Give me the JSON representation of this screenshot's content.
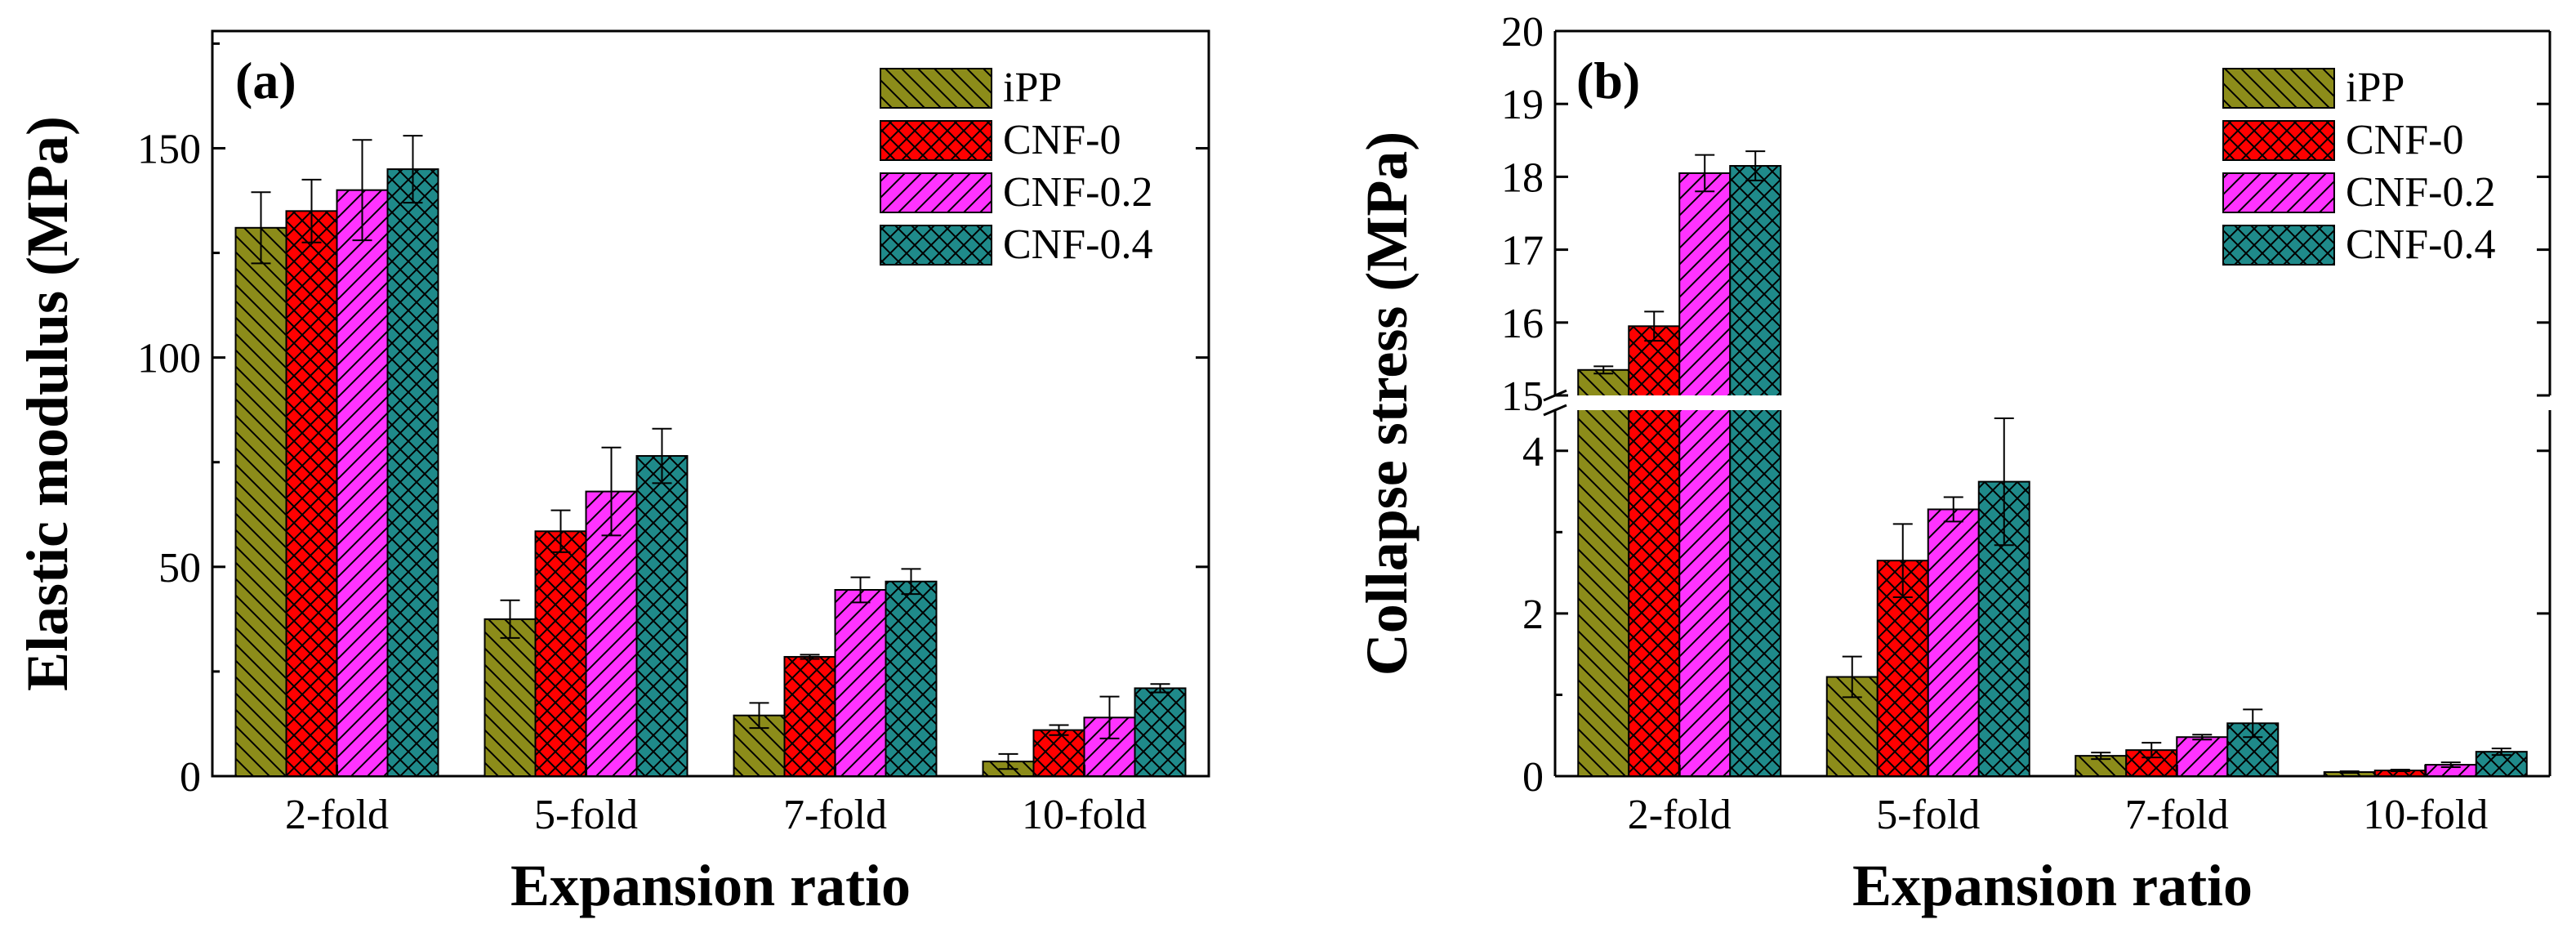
{
  "chart_data": [
    {
      "type": "bar",
      "panel_label": "(a)",
      "categories": [
        "2-fold",
        "5-fold",
        "7-fold",
        "10-fold"
      ],
      "series": [
        {
          "name": "iPP",
          "values": [
            131,
            37.5,
            14.5,
            3.5
          ],
          "errors": [
            8.5,
            4.5,
            3.0,
            1.8
          ]
        },
        {
          "name": "CNF-0",
          "values": [
            135,
            58.5,
            28.5,
            11.0
          ],
          "errors": [
            7.5,
            5.0,
            0.5,
            1.2
          ]
        },
        {
          "name": "CNF-0.2",
          "values": [
            140,
            68.0,
            44.5,
            14.0
          ],
          "errors": [
            12.0,
            10.5,
            3.0,
            5.0
          ]
        },
        {
          "name": "CNF-0.4",
          "values": [
            145,
            76.5,
            46.5,
            21.0
          ],
          "errors": [
            8.0,
            6.5,
            3.0,
            1.0
          ]
        }
      ],
      "xlabel": "Expansion ratio",
      "ylabel": "Elastic modulus (MPa)",
      "ylim": [
        0,
        178
      ],
      "yticks": [
        "0",
        "50",
        "100",
        "150"
      ],
      "legend_position": "top-right"
    },
    {
      "type": "bar",
      "panel_label": "(b)",
      "categories": [
        "2-fold",
        "5-fold",
        "7-fold",
        "10-fold"
      ],
      "series": [
        {
          "name": "iPP",
          "values": [
            15.35,
            1.22,
            0.25,
            0.05
          ],
          "errors": [
            0.05,
            0.25,
            0.04,
            0.01
          ]
        },
        {
          "name": "CNF-0",
          "values": [
            15.95,
            2.65,
            0.32,
            0.07
          ],
          "errors": [
            0.2,
            0.45,
            0.09,
            0.01
          ]
        },
        {
          "name": "CNF-0.2",
          "values": [
            18.05,
            3.28,
            0.48,
            0.14
          ],
          "errors": [
            0.25,
            0.15,
            0.03,
            0.03
          ]
        },
        {
          "name": "CNF-0.4",
          "values": [
            18.15,
            3.62,
            0.65,
            0.3
          ],
          "errors": [
            0.2,
            0.78,
            0.17,
            0.04
          ]
        }
      ],
      "xlabel": "Expansion ratio",
      "ylabel": "Collapse stress (MPa)",
      "axis_break": {
        "lower_range": [
          0,
          4.5
        ],
        "upper_range": [
          15,
          20
        ]
      },
      "lower_yticks": [
        "0",
        "2",
        "4"
      ],
      "upper_yticks": [
        "15",
        "16",
        "17",
        "18",
        "19",
        "20"
      ],
      "legend_position": "top-right"
    }
  ],
  "colors": {
    "iPP": "#8c8c1a",
    "CNF-0": "#ff0000",
    "CNF-0.2": "#ff33ff",
    "CNF-0.4": "#1f8a8a"
  }
}
